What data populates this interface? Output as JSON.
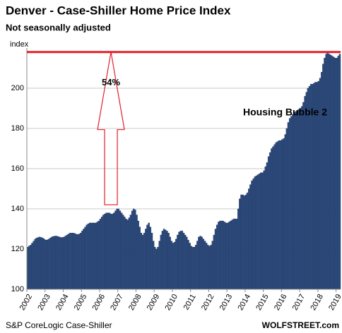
{
  "chart_data": {
    "type": "bar",
    "title": "Denver  - Case-Shiller Home Price Index",
    "subtitle": "Not seasonally adjusted",
    "ylabel": "index",
    "source": "S&P CoreLogic Case-Shiller",
    "credit": "WOLFSTREET.com",
    "annotations": [
      "54%",
      "Housing Bubble 2"
    ],
    "reference_line": 218,
    "arrow_from": 142,
    "color": "#2c4a7c",
    "accent_color": "#e0202a",
    "grid": true,
    "ylim": [
      100,
      220
    ],
    "yticks": [
      100,
      120,
      140,
      160,
      180,
      200
    ],
    "categories": [
      "2002",
      null,
      null,
      null,
      null,
      null,
      null,
      null,
      null,
      null,
      null,
      null,
      "2003",
      null,
      null,
      null,
      null,
      null,
      null,
      null,
      null,
      null,
      null,
      null,
      "2004",
      null,
      null,
      null,
      null,
      null,
      null,
      null,
      null,
      null,
      null,
      null,
      "2005",
      null,
      null,
      null,
      null,
      null,
      null,
      null,
      null,
      null,
      null,
      null,
      "2006",
      null,
      null,
      null,
      null,
      null,
      null,
      null,
      null,
      null,
      null,
      null,
      "2007",
      null,
      null,
      null,
      null,
      null,
      null,
      null,
      null,
      null,
      null,
      null,
      "2008",
      null,
      null,
      null,
      null,
      null,
      null,
      null,
      null,
      null,
      null,
      null,
      "2009",
      null,
      null,
      null,
      null,
      null,
      null,
      null,
      null,
      null,
      null,
      null,
      "2010",
      null,
      null,
      null,
      null,
      null,
      null,
      null,
      null,
      null,
      null,
      null,
      "2011",
      null,
      null,
      null,
      null,
      null,
      null,
      null,
      null,
      null,
      null,
      null,
      "2012",
      null,
      null,
      null,
      null,
      null,
      null,
      null,
      null,
      null,
      null,
      null,
      "2013",
      null,
      null,
      null,
      null,
      null,
      null,
      null,
      null,
      null,
      null,
      null,
      "2014",
      null,
      null,
      null,
      null,
      null,
      null,
      null,
      null,
      null,
      null,
      null,
      "2015",
      null,
      null,
      null,
      null,
      null,
      null,
      null,
      null,
      null,
      null,
      null,
      "2016",
      null,
      null,
      null,
      null,
      null,
      null,
      null,
      null,
      null,
      null,
      null,
      "2017",
      null,
      null,
      null,
      null,
      null,
      null,
      null,
      null,
      null,
      null,
      null,
      "2018",
      null,
      null,
      null,
      null,
      null,
      null,
      null,
      null,
      null,
      null,
      null,
      "2019",
      null,
      null
    ],
    "values": [
      121,
      121.5,
      122,
      123,
      124,
      125,
      125.5,
      125.8,
      126,
      125.8,
      125.5,
      125,
      124.5,
      124.6,
      125,
      125.5,
      126,
      126.3,
      126.5,
      126.5,
      126.3,
      126,
      125.8,
      125.8,
      126,
      126.5,
      127,
      127.5,
      128,
      128,
      128,
      127.8,
      127.5,
      127.3,
      127.5,
      128,
      129,
      130,
      131,
      132,
      132.5,
      133,
      133,
      133,
      133,
      133,
      133.5,
      134,
      135,
      136,
      137,
      137.5,
      138,
      138,
      138,
      137.5,
      137.5,
      138,
      139,
      140,
      140,
      139,
      138,
      137,
      136,
      135,
      134.5,
      135.5,
      137,
      139,
      140,
      139.5,
      137,
      134,
      131,
      128,
      127,
      128,
      130,
      132,
      133,
      131,
      128,
      124,
      121,
      120,
      121,
      124,
      127,
      129,
      130,
      129.5,
      129,
      128,
      126,
      124,
      123,
      123.5,
      125,
      127,
      128.5,
      129,
      129,
      128,
      127,
      126,
      124.5,
      123,
      121.5,
      121,
      121,
      122,
      124,
      126,
      126.5,
      126,
      125,
      124,
      123,
      122,
      121.5,
      122,
      124,
      127,
      130,
      132,
      133.5,
      134,
      134,
      134,
      133.5,
      133,
      133,
      133.5,
      134,
      134.5,
      135,
      135,
      135,
      140,
      145,
      147,
      147,
      146.5,
      147,
      148,
      150,
      152,
      154,
      155,
      156,
      156.5,
      157,
      157.5,
      158,
      158,
      159,
      161,
      163,
      166,
      168,
      170,
      171,
      172,
      173,
      173.5,
      174,
      174,
      174.5,
      175,
      177,
      180,
      183,
      185,
      186,
      187,
      188,
      188.5,
      189,
      189.5,
      190,
      191,
      193,
      196,
      198,
      200,
      201,
      202,
      202,
      202.5,
      203,
      203,
      203.5,
      205,
      208,
      212,
      215,
      217,
      217.5,
      217,
      216.5,
      216,
      215.5,
      215,
      215,
      216,
      217
    ]
  }
}
